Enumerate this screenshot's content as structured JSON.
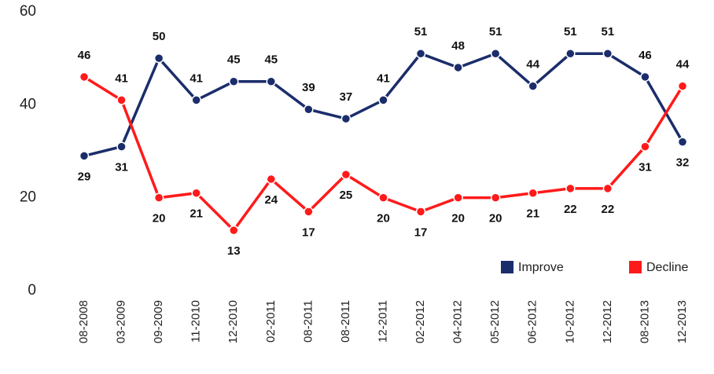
{
  "chart_data": {
    "type": "line",
    "categories": [
      "08-2008",
      "03-2009",
      "09-2009",
      "11-2010",
      "12-2010",
      "02-2011",
      "08-2011",
      "08-2011",
      "12-2011",
      "02-2012",
      "04-2012",
      "05-2012",
      "06-2012",
      "10-2012",
      "12-2012",
      "08-2013",
      "12-2013"
    ],
    "series": [
      {
        "name": "Improve",
        "color": "#1b2d6b",
        "values": [
          29,
          31,
          50,
          41,
          45,
          45,
          39,
          37,
          41,
          51,
          48,
          51,
          44,
          51,
          51,
          46,
          32
        ]
      },
      {
        "name": "Decline",
        "color": "#ff1a1a",
        "values": [
          46,
          41,
          20,
          21,
          13,
          24,
          17,
          25,
          20,
          17,
          20,
          20,
          21,
          22,
          22,
          31,
          44
        ]
      }
    ],
    "ylim": [
      0,
      60
    ],
    "yticks": [
      0,
      20,
      40,
      60
    ],
    "grid": false,
    "legend": "lower right"
  }
}
